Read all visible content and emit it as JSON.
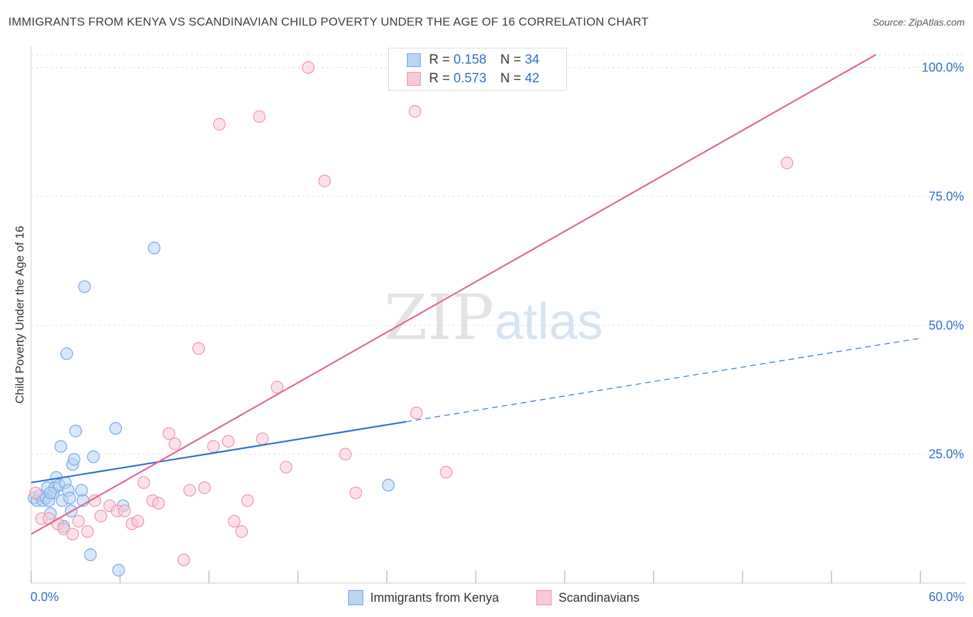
{
  "title": "IMMIGRANTS FROM KENYA VS SCANDINAVIAN CHILD POVERTY UNDER THE AGE OF 16 CORRELATION CHART",
  "source": "Source: ZipAtlas.com",
  "watermark": {
    "zip": "ZIP",
    "atlas": "atlas"
  },
  "legend": {
    "r_label": "R =",
    "n_label": "N =",
    "series": [
      {
        "r": "0.158",
        "n": "34"
      },
      {
        "r": "0.573",
        "n": "42"
      }
    ]
  },
  "chart_data": {
    "type": "scatter",
    "title": "IMMIGRANTS FROM KENYA VS SCANDINAVIAN CHILD POVERTY UNDER THE AGE OF 16 CORRELATION CHART",
    "xlabel": "",
    "ylabel": "Child Poverty Under the Age of 16",
    "xlim": [
      0,
      60
    ],
    "ylim": [
      0,
      102.5
    ],
    "x_tick_labels": [
      "0.0%",
      "60.0%"
    ],
    "y_ticks": [
      25,
      50,
      75,
      100
    ],
    "y_tick_labels": [
      "25.0%",
      "50.0%",
      "75.0%",
      "100.0%"
    ],
    "grid": true,
    "legend_position": "bottom-center",
    "series": [
      {
        "name": "Immigrants from Kenya",
        "color": "#6fa8e8",
        "fill": "#b9d3f2",
        "line_color": "#2a6fcf",
        "trend": {
          "x": [
            0,
            25.3
          ],
          "y": [
            19.5,
            31.3
          ]
        },
        "trend_extension": {
          "x": [
            25.3,
            60
          ],
          "y": [
            31.3,
            47.5
          ]
        },
        "points": [
          [
            0.2,
            16.5
          ],
          [
            0.4,
            16.0
          ],
          [
            0.6,
            17.0
          ],
          [
            0.8,
            16.0
          ],
          [
            1.0,
            16.5
          ],
          [
            1.1,
            18.5
          ],
          [
            1.2,
            16.0
          ],
          [
            1.3,
            13.5
          ],
          [
            1.5,
            17.5
          ],
          [
            1.6,
            18.5
          ],
          [
            1.7,
            20.5
          ],
          [
            1.9,
            19.0
          ],
          [
            2.0,
            26.5
          ],
          [
            2.1,
            16.0
          ],
          [
            2.2,
            11.0
          ],
          [
            2.3,
            19.5
          ],
          [
            2.4,
            44.5
          ],
          [
            2.5,
            18.0
          ],
          [
            2.6,
            16.5
          ],
          [
            2.7,
            14.0
          ],
          [
            2.8,
            23.0
          ],
          [
            2.9,
            24.0
          ],
          [
            3.0,
            29.5
          ],
          [
            3.4,
            18.0
          ],
          [
            3.5,
            16.0
          ],
          [
            3.6,
            57.5
          ],
          [
            4.0,
            5.5
          ],
          [
            4.2,
            24.5
          ],
          [
            5.7,
            30.0
          ],
          [
            5.9,
            2.5
          ],
          [
            6.2,
            15.0
          ],
          [
            8.3,
            65.0
          ],
          [
            24.1,
            19.0
          ],
          [
            1.3,
            17.5
          ]
        ]
      },
      {
        "name": "Scandinavians",
        "color": "#ef93b1",
        "fill": "#f8c9d8",
        "line_color": "#e06690",
        "trend": {
          "x": [
            0,
            57
          ],
          "y": [
            9.5,
            102.5
          ]
        },
        "points": [
          [
            0.3,
            17.5
          ],
          [
            0.7,
            12.5
          ],
          [
            1.2,
            12.5
          ],
          [
            1.8,
            11.5
          ],
          [
            2.2,
            10.5
          ],
          [
            2.8,
            9.5
          ],
          [
            3.2,
            12.0
          ],
          [
            3.8,
            10.0
          ],
          [
            4.3,
            16.0
          ],
          [
            4.7,
            13.0
          ],
          [
            5.3,
            15.0
          ],
          [
            5.8,
            14.0
          ],
          [
            6.3,
            14.0
          ],
          [
            6.8,
            11.5
          ],
          [
            7.2,
            12.0
          ],
          [
            7.6,
            19.5
          ],
          [
            8.2,
            16.0
          ],
          [
            8.6,
            15.5
          ],
          [
            9.3,
            29.0
          ],
          [
            9.7,
            27.0
          ],
          [
            10.3,
            4.5
          ],
          [
            10.7,
            18.0
          ],
          [
            11.3,
            45.5
          ],
          [
            11.7,
            18.5
          ],
          [
            12.3,
            26.5
          ],
          [
            12.7,
            89.0
          ],
          [
            13.3,
            27.5
          ],
          [
            13.7,
            12.0
          ],
          [
            14.2,
            10.0
          ],
          [
            14.6,
            16.0
          ],
          [
            15.4,
            90.5
          ],
          [
            15.6,
            28.0
          ],
          [
            16.6,
            38.0
          ],
          [
            17.2,
            22.5
          ],
          [
            18.7,
            100.0
          ],
          [
            19.8,
            78.0
          ],
          [
            21.2,
            25.0
          ],
          [
            21.9,
            17.5
          ],
          [
            25.9,
            91.5
          ],
          [
            26.0,
            33.0
          ],
          [
            28.0,
            21.5
          ],
          [
            51.0,
            81.5
          ]
        ]
      }
    ]
  }
}
